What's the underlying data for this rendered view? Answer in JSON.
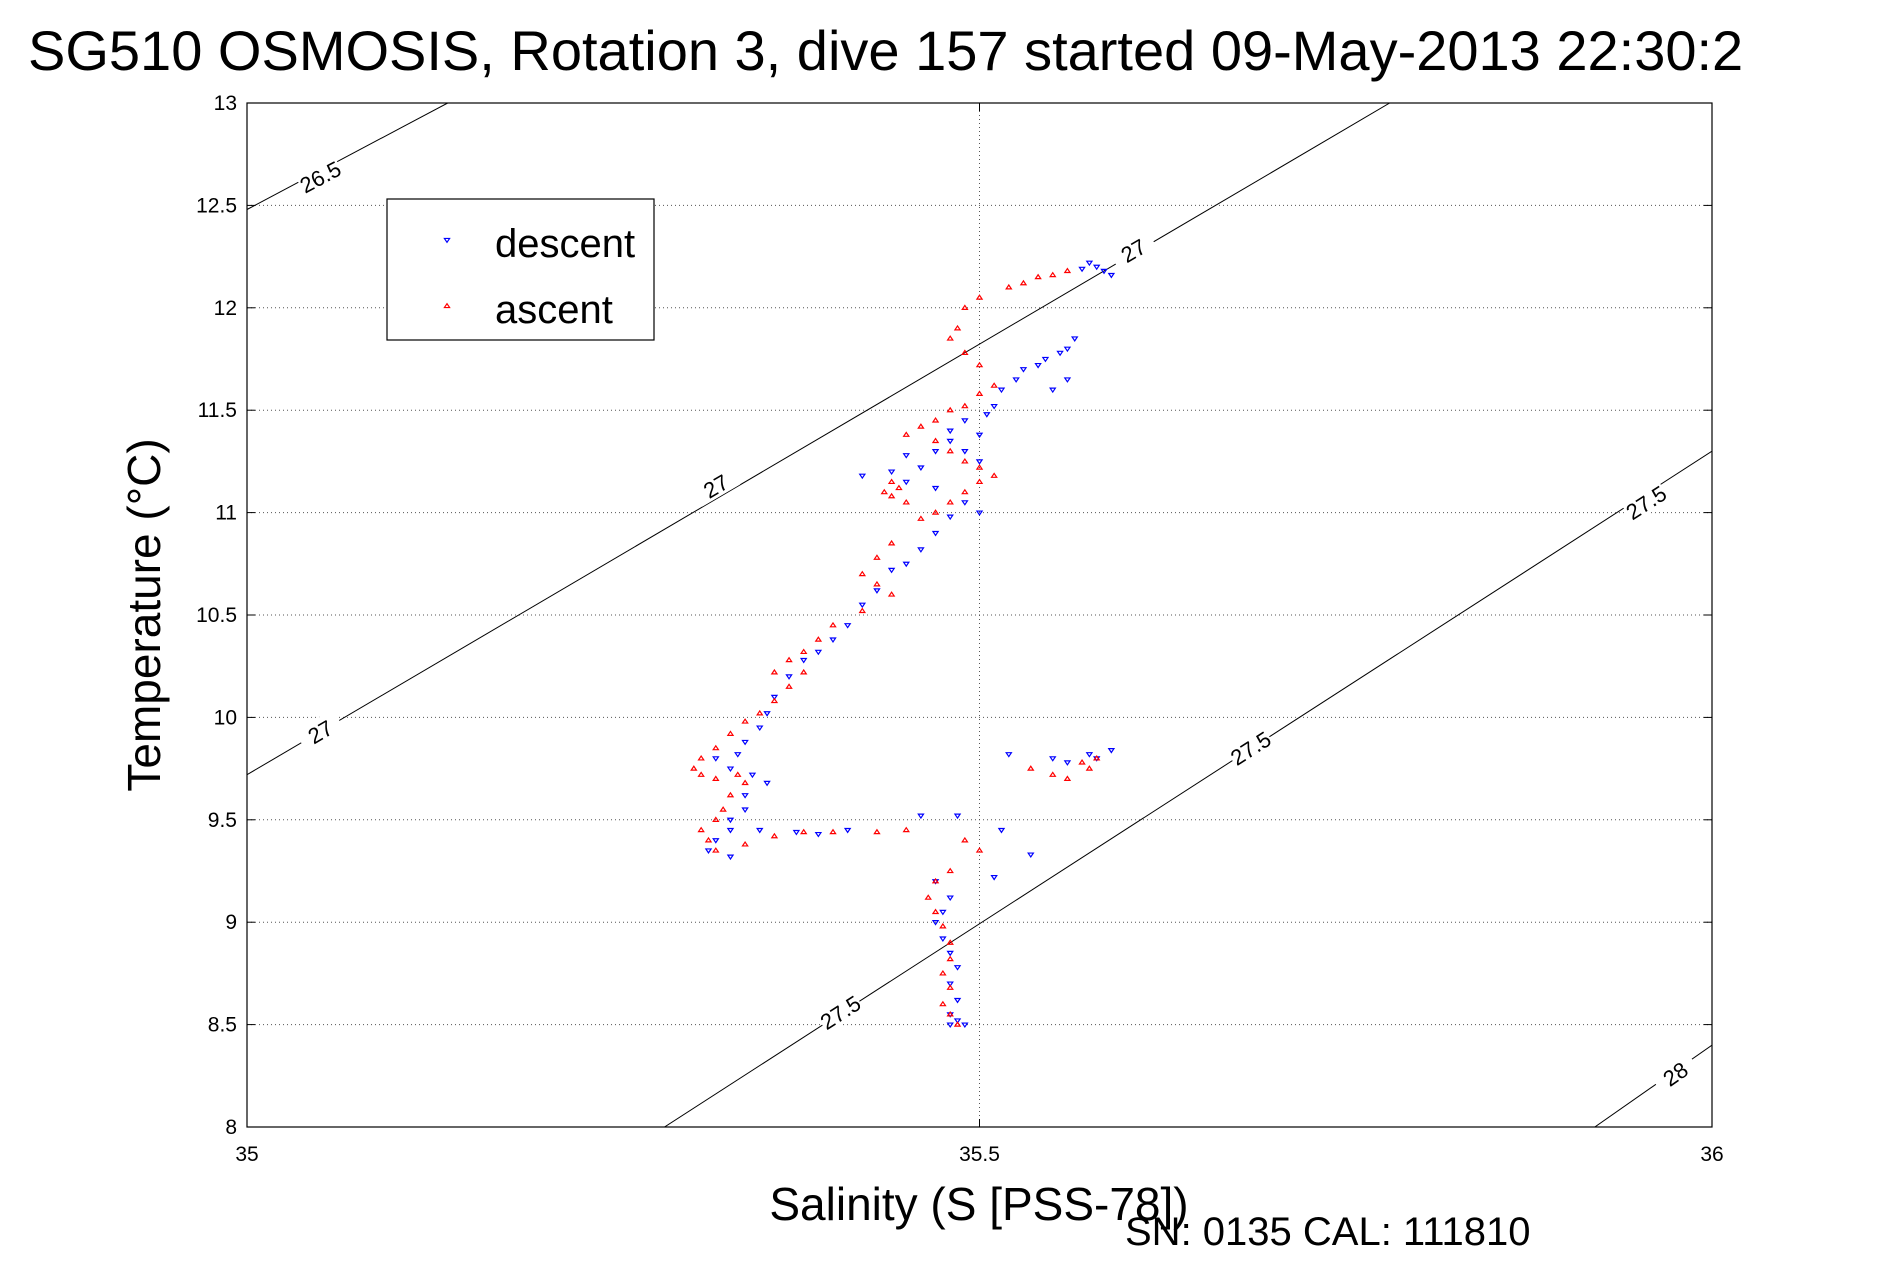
{
  "chart_data": {
    "type": "scatter",
    "title": "SG510 OSMOSIS, Rotation 3, dive 157 started 09-May-2013 22:30:2",
    "xlabel": "Salinity (S [PSS-78])",
    "ylabel": "Temperature (°C)",
    "xlim": [
      35,
      36
    ],
    "ylim": [
      8,
      13
    ],
    "x_ticks": [
      "35",
      "35.5",
      "36"
    ],
    "y_ticks": [
      "8",
      "8.5",
      "9",
      "9.5",
      "10",
      "10.5",
      "11",
      "11.5",
      "12",
      "12.5",
      "13"
    ],
    "grid": true,
    "legend_position": "top-left",
    "footer": "SN: 0135  CAL: 111810",
    "contours": [
      {
        "label": "26.5",
        "points": [
          [
            35.0,
            12.48
          ],
          [
            35.137,
            13.0
          ]
        ],
        "label_at": [
          35.05,
          12.64
        ]
      },
      {
        "label": "27",
        "points": [
          [
            35.0,
            9.72
          ],
          [
            35.78,
            13.0
          ]
        ],
        "label_at": [
          35.05,
          9.93
        ]
      },
      {
        "label": "27",
        "label_at": [
          35.32,
          11.13
        ]
      },
      {
        "label": "27",
        "label_at": [
          35.605,
          12.28
        ]
      },
      {
        "label": "27.5",
        "points": [
          [
            35.285,
            8.0
          ],
          [
            36.0,
            11.3
          ]
        ],
        "label_at": [
          35.405,
          8.56
        ]
      },
      {
        "label": "27.5",
        "label_at": [
          35.685,
          9.85
        ]
      },
      {
        "label": "27.5",
        "label_at": [
          35.955,
          11.05
        ]
      },
      {
        "label": "28",
        "points": [
          [
            35.92,
            8.0
          ],
          [
            36.0,
            8.4
          ]
        ],
        "label_at": [
          35.975,
          8.26
        ]
      }
    ],
    "series": [
      {
        "name": "descent",
        "color": "#0000ff",
        "marker": "triangle-down",
        "points": [
          [
            35.58,
            12.2
          ],
          [
            35.575,
            12.22
          ],
          [
            35.585,
            12.18
          ],
          [
            35.57,
            12.19
          ],
          [
            35.59,
            12.16
          ],
          [
            35.565,
            11.85
          ],
          [
            35.56,
            11.8
          ],
          [
            35.555,
            11.78
          ],
          [
            35.545,
            11.75
          ],
          [
            35.54,
            11.72
          ],
          [
            35.53,
            11.7
          ],
          [
            35.525,
            11.65
          ],
          [
            35.515,
            11.6
          ],
          [
            35.55,
            11.6
          ],
          [
            35.56,
            11.65
          ],
          [
            35.51,
            11.52
          ],
          [
            35.505,
            11.48
          ],
          [
            35.49,
            11.45
          ],
          [
            35.48,
            11.4
          ],
          [
            35.5,
            11.38
          ],
          [
            35.48,
            11.35
          ],
          [
            35.47,
            11.3
          ],
          [
            35.49,
            11.3
          ],
          [
            35.5,
            11.25
          ],
          [
            35.45,
            11.28
          ],
          [
            35.46,
            11.22
          ],
          [
            35.44,
            11.2
          ],
          [
            35.42,
            11.18
          ],
          [
            35.45,
            11.15
          ],
          [
            35.47,
            11.12
          ],
          [
            35.49,
            11.05
          ],
          [
            35.5,
            11.0
          ],
          [
            35.48,
            10.98
          ],
          [
            35.47,
            10.9
          ],
          [
            35.46,
            10.82
          ],
          [
            35.45,
            10.75
          ],
          [
            35.44,
            10.72
          ],
          [
            35.43,
            10.62
          ],
          [
            35.42,
            10.55
          ],
          [
            35.41,
            10.45
          ],
          [
            35.4,
            10.38
          ],
          [
            35.39,
            10.32
          ],
          [
            35.38,
            10.28
          ],
          [
            35.37,
            10.2
          ],
          [
            35.36,
            10.1
          ],
          [
            35.355,
            10.02
          ],
          [
            35.35,
            9.95
          ],
          [
            35.34,
            9.88
          ],
          [
            35.335,
            9.82
          ],
          [
            35.32,
            9.8
          ],
          [
            35.33,
            9.75
          ],
          [
            35.345,
            9.72
          ],
          [
            35.355,
            9.68
          ],
          [
            35.34,
            9.62
          ],
          [
            35.34,
            9.55
          ],
          [
            35.33,
            9.5
          ],
          [
            35.33,
            9.45
          ],
          [
            35.32,
            9.4
          ],
          [
            35.315,
            9.35
          ],
          [
            35.33,
            9.32
          ],
          [
            35.35,
            9.45
          ],
          [
            35.375,
            9.44
          ],
          [
            35.39,
            9.43
          ],
          [
            35.41,
            9.45
          ],
          [
            35.46,
            9.52
          ],
          [
            35.485,
            9.52
          ],
          [
            35.515,
            9.45
          ],
          [
            35.535,
            9.33
          ],
          [
            35.51,
            9.22
          ],
          [
            35.47,
            9.2
          ],
          [
            35.48,
            9.12
          ],
          [
            35.475,
            9.05
          ],
          [
            35.47,
            9.0
          ],
          [
            35.475,
            8.92
          ],
          [
            35.48,
            8.85
          ],
          [
            35.485,
            8.78
          ],
          [
            35.48,
            8.7
          ],
          [
            35.485,
            8.62
          ],
          [
            35.48,
            8.55
          ],
          [
            35.485,
            8.52
          ],
          [
            35.48,
            8.5
          ],
          [
            35.49,
            8.5
          ],
          [
            35.52,
            9.82
          ],
          [
            35.55,
            9.8
          ],
          [
            35.56,
            9.78
          ],
          [
            35.575,
            9.82
          ],
          [
            35.58,
            9.8
          ],
          [
            35.59,
            9.84
          ]
        ]
      },
      {
        "name": "ascent",
        "color": "#ff0000",
        "marker": "triangle-up",
        "points": [
          [
            35.56,
            12.18
          ],
          [
            35.55,
            12.16
          ],
          [
            35.54,
            12.15
          ],
          [
            35.53,
            12.12
          ],
          [
            35.52,
            12.1
          ],
          [
            35.5,
            12.05
          ],
          [
            35.49,
            12.0
          ],
          [
            35.485,
            11.9
          ],
          [
            35.48,
            11.85
          ],
          [
            35.49,
            11.78
          ],
          [
            35.5,
            11.72
          ],
          [
            35.51,
            11.62
          ],
          [
            35.5,
            11.58
          ],
          [
            35.49,
            11.52
          ],
          [
            35.48,
            11.5
          ],
          [
            35.47,
            11.45
          ],
          [
            35.46,
            11.42
          ],
          [
            35.45,
            11.38
          ],
          [
            35.47,
            11.35
          ],
          [
            35.48,
            11.3
          ],
          [
            35.49,
            11.25
          ],
          [
            35.5,
            11.22
          ],
          [
            35.51,
            11.18
          ],
          [
            35.5,
            11.15
          ],
          [
            35.49,
            11.1
          ],
          [
            35.48,
            11.05
          ],
          [
            35.47,
            11.0
          ],
          [
            35.46,
            10.97
          ],
          [
            35.44,
            11.15
          ],
          [
            35.435,
            11.1
          ],
          [
            35.44,
            11.08
          ],
          [
            35.45,
            11.05
          ],
          [
            35.445,
            11.12
          ],
          [
            35.44,
            10.85
          ],
          [
            35.43,
            10.78
          ],
          [
            35.42,
            10.7
          ],
          [
            35.43,
            10.65
          ],
          [
            35.44,
            10.6
          ],
          [
            35.42,
            10.52
          ],
          [
            35.4,
            10.45
          ],
          [
            35.39,
            10.38
          ],
          [
            35.38,
            10.32
          ],
          [
            35.37,
            10.28
          ],
          [
            35.36,
            10.22
          ],
          [
            35.38,
            10.22
          ],
          [
            35.37,
            10.15
          ],
          [
            35.36,
            10.08
          ],
          [
            35.35,
            10.02
          ],
          [
            35.34,
            9.98
          ],
          [
            35.33,
            9.92
          ],
          [
            35.32,
            9.85
          ],
          [
            35.31,
            9.8
          ],
          [
            35.305,
            9.75
          ],
          [
            35.31,
            9.72
          ],
          [
            35.32,
            9.7
          ],
          [
            35.335,
            9.72
          ],
          [
            35.34,
            9.68
          ],
          [
            35.33,
            9.62
          ],
          [
            35.325,
            9.55
          ],
          [
            35.32,
            9.5
          ],
          [
            35.31,
            9.45
          ],
          [
            35.315,
            9.4
          ],
          [
            35.32,
            9.35
          ],
          [
            35.34,
            9.38
          ],
          [
            35.36,
            9.42
          ],
          [
            35.38,
            9.44
          ],
          [
            35.4,
            9.44
          ],
          [
            35.43,
            9.44
          ],
          [
            35.45,
            9.45
          ],
          [
            35.49,
            9.4
          ],
          [
            35.5,
            9.35
          ],
          [
            35.48,
            9.25
          ],
          [
            35.47,
            9.2
          ],
          [
            35.465,
            9.12
          ],
          [
            35.47,
            9.05
          ],
          [
            35.475,
            8.98
          ],
          [
            35.48,
            8.9
          ],
          [
            35.48,
            8.82
          ],
          [
            35.475,
            8.75
          ],
          [
            35.48,
            8.68
          ],
          [
            35.475,
            8.6
          ],
          [
            35.48,
            8.55
          ],
          [
            35.485,
            8.5
          ],
          [
            35.535,
            9.75
          ],
          [
            35.55,
            9.72
          ],
          [
            35.56,
            9.7
          ],
          [
            35.57,
            9.78
          ],
          [
            35.575,
            9.75
          ],
          [
            35.58,
            9.8
          ]
        ]
      }
    ]
  }
}
